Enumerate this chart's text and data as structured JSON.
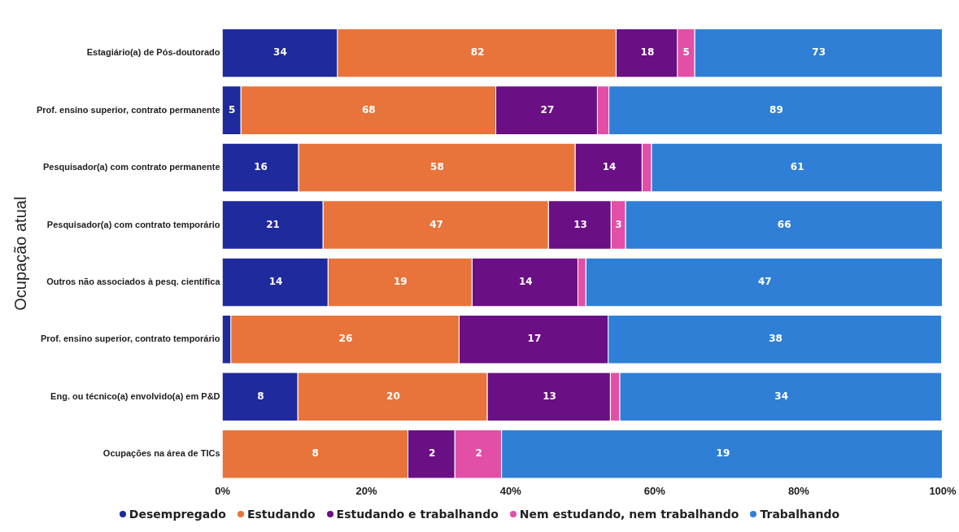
{
  "chart_data": {
    "type": "bar",
    "orientation": "horizontal",
    "stacked": true,
    "ylabel": "Ocupação atual",
    "categories": [
      "Estagiário(a) de Pós-doutorado",
      "Prof. ensino superior, contrato permanente",
      "Pesquisador(a) com contrato permanente",
      "Pesquisador(a) com contrato temporário",
      "Outros não associados à pesq. científica",
      "Prof. ensino superior, contrato temporário",
      "Eng. ou técnico(a) envolvido(a) em P&D",
      "Ocupações na área de TICs"
    ],
    "series": [
      {
        "name": "Desempregado",
        "color": "#1f2a9c",
        "values": [
          16.0,
          2.6,
          10.6,
          14.0,
          14.7,
          1.2,
          10.5,
          0
        ]
      },
      {
        "name": "Estudando",
        "color": "#e8743b",
        "values": [
          38.7,
          35.4,
          38.4,
          31.3,
          20.0,
          31.7,
          26.3,
          25.8
        ]
      },
      {
        "name": "Estudando e trabalhando",
        "color": "#6a0f84",
        "values": [
          8.5,
          14.1,
          9.3,
          8.7,
          14.7,
          20.7,
          17.1,
          6.5
        ]
      },
      {
        "name": "Nem estudando, nem trabalhando",
        "color": "#e24fa6",
        "values": [
          2.4,
          1.6,
          1.3,
          2.0,
          1.1,
          0,
          1.3,
          6.5
        ]
      },
      {
        "name": "Trabalhando",
        "color": "#2f7fd6",
        "values": [
          34.4,
          46.3,
          40.4,
          44.0,
          49.5,
          46.3,
          44.7,
          61.2
        ]
      }
    ],
    "annotations": [
      {
        "text": "34",
        "x": 8.0,
        "y": "Estagiário(a) de Pós-doutorado"
      },
      {
        "text": "82",
        "x": 35.4,
        "y": "Estagiário(a) de Pós-doutorado"
      },
      {
        "text": "18",
        "x": 59.0,
        "y": "Estagiário(a) de Pós-doutorado"
      },
      {
        "text": "5",
        "x": 64.4,
        "y": "Estagiário(a) de Pós-doutorado"
      },
      {
        "text": "73",
        "x": 82.8,
        "y": "Estagiário(a) de Pós-doutorado"
      },
      {
        "text": "5",
        "x": 1.3,
        "y": "Prof. ensino superior, contrato permanente"
      },
      {
        "text": "68",
        "x": 20.3,
        "y": "Prof. ensino superior, contrato permanente"
      },
      {
        "text": "27",
        "x": 45.1,
        "y": "Prof. ensino superior, contrato permanente"
      },
      {
        "text": "89",
        "x": 76.9,
        "y": "Prof. ensino superior, contrato permanente"
      },
      {
        "text": "16",
        "x": 5.3,
        "y": "Pesquisador(a) com contrato permanente"
      },
      {
        "text": "58",
        "x": 29.8,
        "y": "Pesquisador(a) com contrato permanente"
      },
      {
        "text": "14",
        "x": 53.7,
        "y": "Pesquisador(a) com contrato permanente"
      },
      {
        "text": "61",
        "x": 79.8,
        "y": "Pesquisador(a) com contrato permanente"
      },
      {
        "text": "21",
        "x": 7.0,
        "y": "Pesquisador(a) com contrato temporário"
      },
      {
        "text": "47",
        "x": 29.7,
        "y": "Pesquisador(a) com contrato temporário"
      },
      {
        "text": "13",
        "x": 49.7,
        "y": "Pesquisador(a) com contrato temporário"
      },
      {
        "text": "3",
        "x": 55.0,
        "y": "Pesquisador(a) com contrato temporário"
      },
      {
        "text": "66",
        "x": 78.0,
        "y": "Pesquisador(a) com contrato temporário"
      },
      {
        "text": "14",
        "x": 7.4,
        "y": "Outros não associados à pesq. científica"
      },
      {
        "text": "19",
        "x": 24.7,
        "y": "Outros não associados à pesq. científica"
      },
      {
        "text": "14",
        "x": 42.1,
        "y": "Outros não associados à pesq. científica"
      },
      {
        "text": "47",
        "x": 75.3,
        "y": "Outros não associados à pesq. científica"
      },
      {
        "text": "26",
        "x": 17.1,
        "y": "Prof. ensino superior, contrato temporário"
      },
      {
        "text": "17",
        "x": 43.3,
        "y": "Prof. ensino superior, contrato temporário"
      },
      {
        "text": "38",
        "x": 76.8,
        "y": "Prof. ensino superior, contrato temporário"
      },
      {
        "text": "8",
        "x": 5.3,
        "y": "Eng. ou técnico(a) envolvido(a) em P&D"
      },
      {
        "text": "20",
        "x": 23.7,
        "y": "Eng. ou técnico(a) envolvido(a) em P&D"
      },
      {
        "text": "13",
        "x": 45.4,
        "y": "Eng. ou técnico(a) envolvido(a) em P&D"
      },
      {
        "text": "34",
        "x": 77.6,
        "y": "Eng. ou técnico(a) envolvido(a) em P&D"
      },
      {
        "text": "8",
        "x": 12.9,
        "y": "Ocupações na área de TICs"
      },
      {
        "text": "2",
        "x": 29.1,
        "y": "Ocupações na área de TICs"
      },
      {
        "text": "2",
        "x": 35.6,
        "y": "Ocupações na área de TICs"
      },
      {
        "text": "19",
        "x": 69.5,
        "y": "Ocupações na área de TICs"
      }
    ],
    "xlim": [
      0,
      100
    ],
    "xticks": [
      {
        "value": 0,
        "label": "0%"
      },
      {
        "value": 20,
        "label": "20%"
      },
      {
        "value": 40,
        "label": "40%"
      },
      {
        "value": 60,
        "label": "60%"
      },
      {
        "value": 80,
        "label": "80%"
      },
      {
        "value": 100,
        "label": "100%"
      }
    ],
    "grid": false,
    "legend": "bottom"
  }
}
